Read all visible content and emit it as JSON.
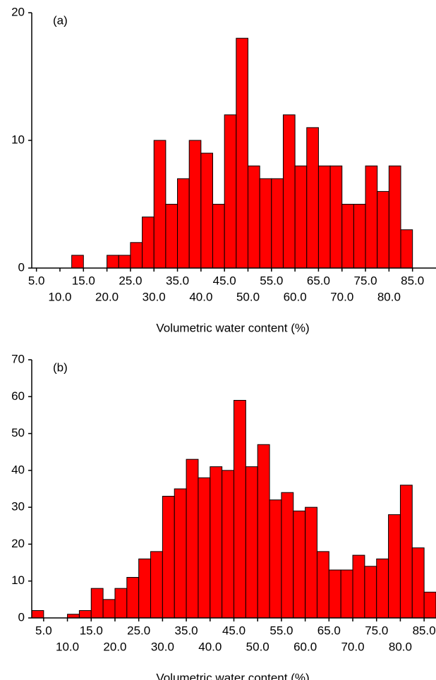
{
  "chart_data": [
    {
      "type": "histogram",
      "label": "(a)",
      "xlabel": "Volumetric water content (%)",
      "color": "#ff0000",
      "bins": [
        12.5,
        15,
        17.5,
        20,
        22.5,
        25,
        27.5,
        30,
        32.5,
        35,
        37.5,
        40,
        42.5,
        45,
        47.5,
        50,
        52.5,
        55,
        57.5,
        60,
        62.5,
        65,
        67.5,
        70,
        72.5,
        75,
        77.5,
        80,
        82.5,
        85
      ],
      "values": [
        1,
        0,
        0,
        1,
        1,
        2,
        4,
        10,
        5,
        7,
        10,
        9,
        5,
        12,
        18,
        8,
        7,
        7,
        12,
        8,
        11,
        8,
        8,
        5,
        5,
        8,
        6,
        8,
        3
      ],
      "xlim": [
        4,
        90
      ],
      "ylim": [
        0,
        20
      ],
      "yticks": [
        0,
        10,
        20
      ],
      "xticks": [
        {
          "value": 5,
          "label": "5.0"
        },
        {
          "value": 10,
          "label": "10.0"
        },
        {
          "value": 15,
          "label": "15.0"
        },
        {
          "value": 20,
          "label": "20.0"
        },
        {
          "value": 25,
          "label": "25.0"
        },
        {
          "value": 30,
          "label": "30.0"
        },
        {
          "value": 35,
          "label": "35.0"
        },
        {
          "value": 40,
          "label": "40.0"
        },
        {
          "value": 45,
          "label": "45.0"
        },
        {
          "value": 50,
          "label": "50.0"
        },
        {
          "value": 55,
          "label": "55.0"
        },
        {
          "value": 60,
          "label": "60.0"
        },
        {
          "value": 65,
          "label": "65.0"
        },
        {
          "value": 70,
          "label": "70.0"
        },
        {
          "value": 75,
          "label": "75.0"
        },
        {
          "value": 80,
          "label": "80.0"
        },
        {
          "value": 85,
          "label": "85.0"
        }
      ]
    },
    {
      "type": "histogram",
      "label": "(b)",
      "xlabel": "Volumetric water content (%)",
      "color": "#ff0000",
      "bins": [
        2.5,
        5,
        7.5,
        10,
        12.5,
        15,
        17.5,
        20,
        22.5,
        25,
        27.5,
        30,
        32.5,
        35,
        37.5,
        40,
        42.5,
        45,
        47.5,
        50,
        52.5,
        55,
        57.5,
        60,
        62.5,
        65,
        67.5,
        70,
        72.5,
        75,
        77.5,
        80,
        82.5,
        85,
        87.5
      ],
      "values": [
        2,
        0,
        0,
        1,
        2,
        8,
        5,
        8,
        11,
        16,
        18,
        33,
        35,
        43,
        38,
        41,
        40,
        59,
        41,
        47,
        32,
        34,
        29,
        30,
        18,
        13,
        13,
        17,
        14,
        16,
        28,
        36,
        19,
        7
      ],
      "xlim": [
        2.5,
        87.5
      ],
      "ylim": [
        0,
        70
      ],
      "yticks": [
        0,
        10,
        20,
        30,
        40,
        50,
        60,
        70
      ],
      "xticks": [
        {
          "value": 5,
          "label": "5.0"
        },
        {
          "value": 10,
          "label": "10.0"
        },
        {
          "value": 15,
          "label": "15.0"
        },
        {
          "value": 20,
          "label": "20.0"
        },
        {
          "value": 25,
          "label": "25.0"
        },
        {
          "value": 30,
          "label": "30.0"
        },
        {
          "value": 35,
          "label": "35.0"
        },
        {
          "value": 40,
          "label": "40.0"
        },
        {
          "value": 45,
          "label": "45.0"
        },
        {
          "value": 50,
          "label": "50.0"
        },
        {
          "value": 55,
          "label": "55.0"
        },
        {
          "value": 60,
          "label": "60.0"
        },
        {
          "value": 65,
          "label": "65.0"
        },
        {
          "value": 70,
          "label": "70.0"
        },
        {
          "value": 75,
          "label": "75.0"
        },
        {
          "value": 80,
          "label": "80.0"
        },
        {
          "value": 85,
          "label": "85.0"
        }
      ]
    }
  ]
}
